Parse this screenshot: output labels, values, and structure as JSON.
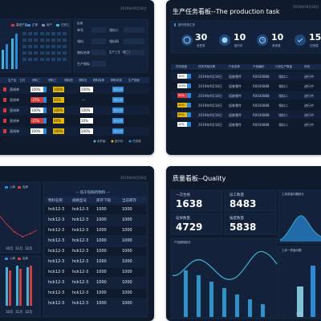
{
  "card1": {
    "date": "2019年09月18日",
    "legend": [
      "直线产量",
      "正常",
      "未产",
      "已完工"
    ],
    "info_labels": [
      "单号",
      "领料",
      "物料名称",
      "生产指标"
    ],
    "info_labels2": [
      "领料二",
      "领料四",
      "生产工艺（前二）"
    ],
    "status_label": "区域",
    "legend_bottom": [
      "未开始",
      "进行中",
      "已完成"
    ],
    "col_headers": [
      "生产区",
      "工时",
      "领料二",
      "领料三",
      "领料四",
      "领料五",
      "物料名称",
      "物料状态",
      "生产指标"
    ],
    "rows": [
      {
        "name": "直线单",
        "pct": "100%",
        "pct2": "100%",
        "pct3": "100%",
        "val": "—",
        "note": "领料单"
      },
      {
        "name": "直线单",
        "pct": "-27%",
        "pct2": "20%",
        "pct3": "—",
        "val": "—",
        "note": "领料单"
      },
      {
        "name": "直线单",
        "pct": "100%",
        "pct2": "100%",
        "pct3": "100%",
        "val": "—",
        "note": "领料单"
      },
      {
        "name": "直线单",
        "pct": "-27%",
        "pct2": "40%",
        "pct3": "10%",
        "val": "—",
        "note": "领料单"
      },
      {
        "name": "直线单",
        "pct": "100%",
        "pct2": "100%",
        "pct3": "100%",
        "val": "—",
        "note": "领料单"
      }
    ]
  },
  "card2": {
    "date": "2019年09月18日",
    "title": "生产任务看板--The production task",
    "section_label": "进行任务汇总",
    "stats": [
      {
        "icon": "pie-chart-icon",
        "value": "30",
        "unit": "总任务"
      },
      {
        "icon": "progress-icon",
        "value": "10",
        "unit": "进行中"
      },
      {
        "icon": "clock-icon",
        "value": "10",
        "unit": "未完成"
      },
      {
        "icon": "check-icon",
        "value": "15",
        "unit": "已完成"
      }
    ],
    "col_headers": [
      "任务进度",
      "任务开始日期",
      "产品名称",
      "产品编码",
      "计划生产数量",
      "状态"
    ],
    "rows": [
      {
        "progress": "10%",
        "date": "2019年9月18日",
        "name": "组装零件",
        "code": "R0030888",
        "qty": "领料二",
        "status": "进行中"
      },
      {
        "progress": "100%",
        "date": "2019年9月18日",
        "name": "组装零件",
        "code": "R0030888",
        "qty": "领料二",
        "status": "进行中"
      },
      {
        "progress": "50%",
        "date": "2019年9月18日",
        "name": "组装零件",
        "code": "R0030888",
        "qty": "领料二",
        "status": "进行中"
      },
      {
        "progress": "40%",
        "date": "2019年9月18日",
        "name": "组装零件",
        "code": "R0030888",
        "qty": "领料二",
        "status": "进行中"
      },
      {
        "progress": "80%",
        "date": "2019年9月18日",
        "name": "组装零件",
        "code": "R0030888",
        "qty": "领料二",
        "status": "进行中"
      },
      {
        "progress": "10%",
        "date": "2019年9月18日",
        "name": "组装零件",
        "code": "R0030888",
        "qty": "领料二",
        "status": "进行中"
      }
    ]
  },
  "card3": {
    "date": "2019年09月18日",
    "legend": [
      "入库",
      "出库"
    ],
    "x_labels": [
      "10月",
      "11月",
      "12月"
    ],
    "table_title": "— 低于低限的物料 —",
    "col_headers": [
      "物料名称",
      "规格型号",
      "库存下限",
      "当前库存"
    ],
    "rows": [
      [
        "hck12-3",
        "hck12-3",
        "1000",
        "1000"
      ],
      [
        "hck12-3",
        "hck12-3",
        "1000",
        "1000"
      ],
      [
        "hck12-3",
        "hck12-3",
        "1000",
        "1000"
      ],
      [
        "hck12-3",
        "hck12-3",
        "1000",
        "1000"
      ],
      [
        "hck12-3",
        "hck12-3",
        "1000",
        "1000"
      ],
      [
        "hck12-3",
        "hck12-3",
        "1000",
        "1000"
      ],
      [
        "hck12-3",
        "hck12-3",
        "1000",
        "1000"
      ],
      [
        "hck12-3",
        "hck12-3",
        "1000",
        "1000"
      ],
      [
        "hck12-3",
        "hck12-3",
        "1000",
        "1000"
      ],
      [
        "hck12-3",
        "hck12-3",
        "1000",
        "1000"
      ]
    ]
  },
  "card4": {
    "title": "质量看板--Quality",
    "kpis": [
      {
        "label": "一次合格",
        "value": "1638"
      },
      {
        "label": "返工数量",
        "value": "8483"
      },
      {
        "label": "返样数量",
        "value": "4729"
      },
      {
        "label": "报废数量",
        "value": "5838"
      }
    ],
    "chart_right_label": "工序质量问题统计",
    "chart_bottom_label": "产品缺陷统计",
    "chart_right_label2": "工序一质量问题",
    "x_label": "日期"
  },
  "colors": {
    "card_bg": "#0f1a2c",
    "accent_blue": "#2a8ad8",
    "accent_red": "#d63a3a",
    "accent_yellow": "#e6b800",
    "teal": "#3fb6d8"
  }
}
